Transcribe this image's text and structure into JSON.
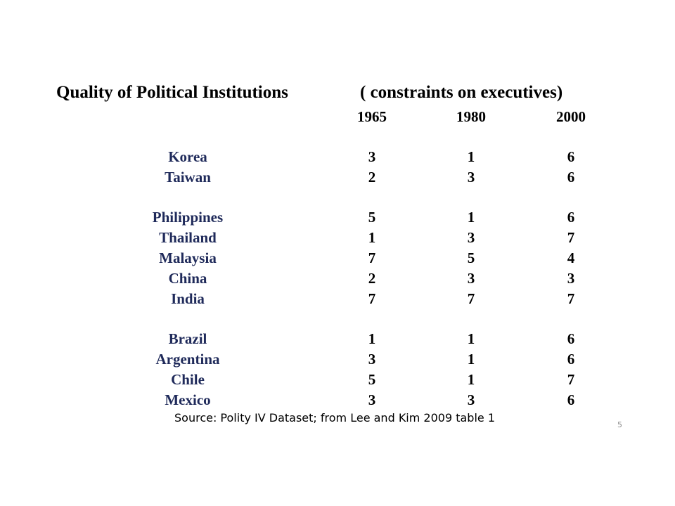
{
  "slide": {
    "title": "Quality of Political Institutions",
    "subtitle": "( constraints on executives)",
    "years": [
      "1965",
      "1980",
      "2000"
    ],
    "rows": [
      {
        "country": "Korea",
        "values": [
          "3",
          "1",
          "6"
        ]
      },
      {
        "country": "Taiwan",
        "values": [
          "2",
          "3",
          "6"
        ]
      },
      {
        "country": "Philippines",
        "values": [
          "5",
          "1",
          "6"
        ]
      },
      {
        "country": "Thailand",
        "values": [
          "1",
          "3",
          "7"
        ]
      },
      {
        "country": "Malaysia",
        "values": [
          "7",
          "5",
          "4"
        ]
      },
      {
        "country": "China",
        "values": [
          "2",
          "3",
          "3"
        ]
      },
      {
        "country": "India",
        "values": [
          "7",
          "7",
          "7"
        ]
      },
      {
        "country": "Brazil",
        "values": [
          "1",
          "1",
          "6"
        ]
      },
      {
        "country": "Argentina",
        "values": [
          "3",
          "1",
          "6"
        ]
      },
      {
        "country": "Chile",
        "values": [
          "5",
          "1",
          "7"
        ]
      },
      {
        "country": "Mexico",
        "values": [
          "3",
          "3",
          "6"
        ]
      }
    ],
    "source": "Source: Polity IV Dataset; from Lee and Kim 2009 table 1",
    "page_number": "5"
  },
  "colors": {
    "country_text": "#1f2a5a",
    "value_text": "#000000",
    "page_number": "#8c8c8c"
  }
}
